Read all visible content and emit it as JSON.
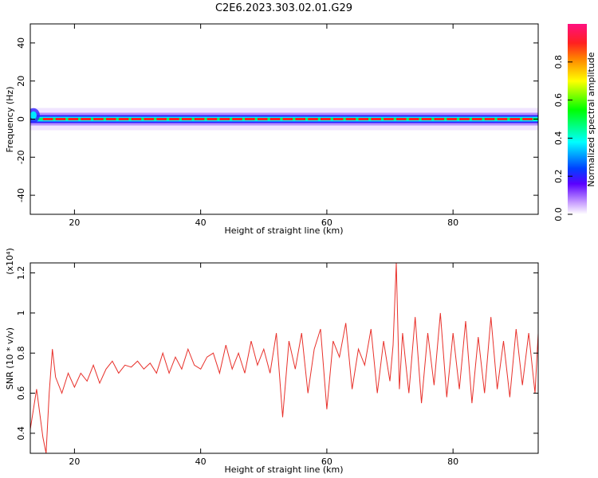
{
  "title": "C2E6.2023.303.02.01.G29",
  "chart_data": [
    {
      "type": "heatmap",
      "xlabel": "Height of straight line (km)",
      "ylabel": "Frequency (Hz)",
      "xlim": [
        13,
        93.5
      ],
      "ylim": [
        -50,
        50
      ],
      "x_ticks": [
        20,
        40,
        60,
        80
      ],
      "y_ticks": [
        -40,
        -20,
        0,
        20,
        40
      ],
      "ridge_frequency_hz": 0,
      "colorbar": {
        "label": "Normalized spectral amplitude",
        "range": [
          0,
          1
        ],
        "ticks": [
          0.0,
          0.2,
          0.4,
          0.6,
          0.8
        ]
      }
    },
    {
      "type": "line",
      "xlabel": "Height of straight line (km)",
      "ylabel": "SNR (10 * v/v)",
      "y_multiplier": "(x10⁴)",
      "xlim": [
        13,
        93.5
      ],
      "ylim": [
        0.3,
        1.25
      ],
      "x_ticks": [
        20,
        40,
        60,
        80
      ],
      "y_ticks": [
        0.4,
        0.6,
        0.8,
        1.0,
        1.2
      ],
      "color": "#e8302a",
      "series": [
        {
          "name": "SNR",
          "x": [
            13,
            14,
            15,
            15.5,
            16,
            16.5,
            17,
            18,
            19,
            20,
            21,
            22,
            23,
            24,
            25,
            26,
            27,
            28,
            29,
            30,
            31,
            32,
            33,
            34,
            35,
            36,
            37,
            38,
            39,
            40,
            41,
            42,
            43,
            44,
            45,
            46,
            47,
            48,
            49,
            50,
            51,
            52,
            53,
            54,
            55,
            56,
            57,
            58,
            59,
            60,
            61,
            62,
            63,
            64,
            65,
            66,
            67,
            68,
            69,
            70,
            70.5,
            71,
            71.5,
            72,
            73,
            74,
            75,
            76,
            77,
            78,
            79,
            80,
            81,
            82,
            83,
            84,
            85,
            86,
            87,
            88,
            89,
            90,
            91,
            92,
            93,
            93.5
          ],
          "values": [
            0.42,
            0.62,
            0.38,
            0.3,
            0.6,
            0.82,
            0.68,
            0.6,
            0.7,
            0.63,
            0.7,
            0.66,
            0.74,
            0.65,
            0.72,
            0.76,
            0.7,
            0.74,
            0.73,
            0.76,
            0.72,
            0.75,
            0.7,
            0.8,
            0.7,
            0.78,
            0.72,
            0.82,
            0.74,
            0.72,
            0.78,
            0.8,
            0.7,
            0.84,
            0.72,
            0.8,
            0.7,
            0.86,
            0.74,
            0.82,
            0.7,
            0.9,
            0.48,
            0.86,
            0.72,
            0.9,
            0.6,
            0.82,
            0.92,
            0.52,
            0.86,
            0.78,
            0.95,
            0.62,
            0.82,
            0.74,
            0.92,
            0.6,
            0.86,
            0.66,
            0.84,
            1.25,
            0.62,
            0.9,
            0.6,
            0.98,
            0.55,
            0.9,
            0.64,
            1.0,
            0.58,
            0.9,
            0.62,
            0.96,
            0.55,
            0.88,
            0.6,
            0.98,
            0.62,
            0.86,
            0.58,
            0.92,
            0.64,
            0.9,
            0.6,
            0.9
          ]
        }
      ]
    }
  ]
}
